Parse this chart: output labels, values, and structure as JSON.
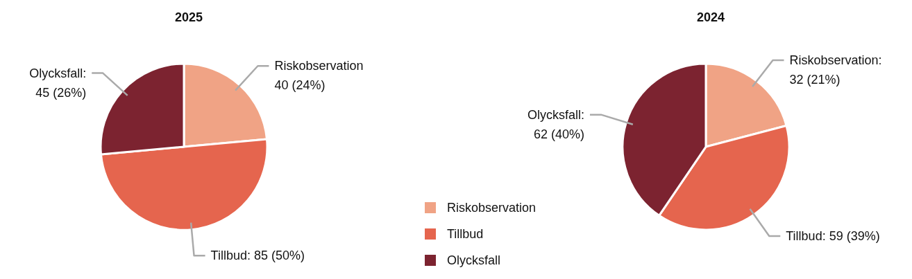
{
  "chart_data": [
    {
      "type": "pie",
      "title": "2025",
      "categories": [
        "Riskobservation",
        "Tillbud",
        "Olycksfall"
      ],
      "values": [
        40,
        85,
        45
      ],
      "colors": [
        "#f0a385",
        "#e5654e",
        "#7c2330"
      ],
      "value_labels": [
        "\n40 (24%)",
        ": 85 (50%)",
        ":\n45 (26%)"
      ]
    },
    {
      "type": "pie",
      "title": "2024",
      "categories": [
        "Riskobservation",
        "Tillbud",
        "Olycksfall"
      ],
      "values": [
        32,
        59,
        62
      ],
      "colors": [
        "#f0a385",
        "#e5654e",
        "#7c2330"
      ],
      "value_labels": [
        ":\n32 (21%)",
        ": 59 (39%)",
        ":\n62 (40%)"
      ],
      "legend": "bottom left"
    }
  ]
}
